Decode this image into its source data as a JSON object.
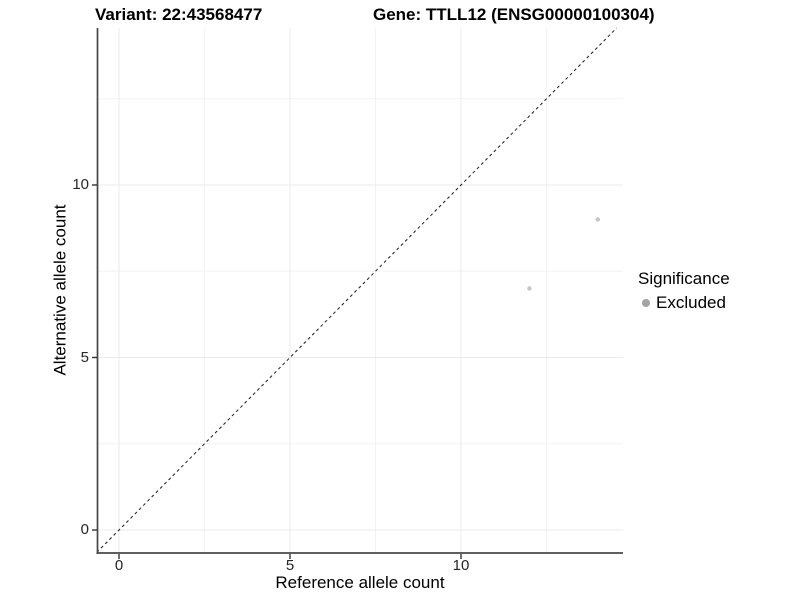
{
  "chart_data": {
    "type": "scatter",
    "titles": {
      "left": "Variant: 22:43568477",
      "right": "Gene: TTLL12 (ENSG00000100304)"
    },
    "xlabel": "Reference allele count",
    "ylabel": "Alternative allele count",
    "xlim": [
      -0.65,
      14.75
    ],
    "ylim": [
      -0.65,
      14.55
    ],
    "x_major_ticks": [
      0,
      5,
      10
    ],
    "y_major_ticks": [
      0,
      5,
      10
    ],
    "x_minor_gridlines": [
      2.5,
      7.5,
      12.5
    ],
    "y_minor_gridlines": [
      2.5,
      7.5,
      12.5
    ],
    "grid": "major and minor, very light gray, white panel background",
    "identity_line": {
      "description": "dashed y = x reference line spanning the panel",
      "style": "dashed",
      "from": [
        -0.65,
        -0.65
      ],
      "to": [
        14.55,
        14.55
      ]
    },
    "series": [
      {
        "name": "Excluded",
        "points": [
          {
            "x": 12,
            "y": 7
          },
          {
            "x": 14,
            "y": 9
          }
        ]
      }
    ],
    "legend": {
      "position": "right",
      "title": "Significance",
      "items": [
        {
          "label": "Excluded",
          "marker_color": "#a3a3a3"
        }
      ]
    },
    "style": {
      "major_grid_color": "#ebebeb",
      "minor_grid_color": "#f3f3f3",
      "axis_line_color": "#474747",
      "tick_mark_color": "#333333",
      "tick_label_color": "#262626",
      "point_color": "#c5c5c5",
      "point_radius_px": 2.2,
      "dashed_line_color": "#1a1a1a"
    }
  }
}
